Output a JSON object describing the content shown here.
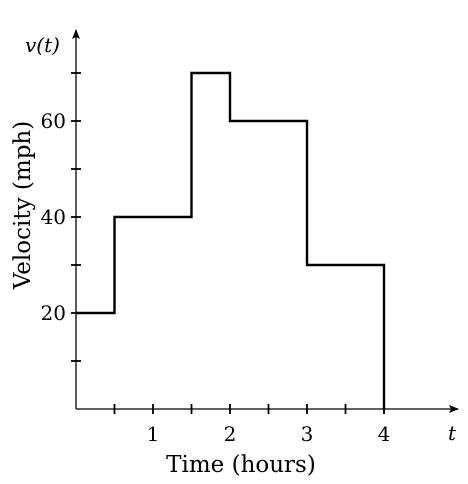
{
  "chart_data": {
    "type": "line",
    "step": true,
    "title": "",
    "xlabel": "Time (hours)",
    "ylabel": "Velocity (mph)",
    "x_var_label": "t",
    "y_var_label": "v(t)",
    "xlim": [
      0,
      5
    ],
    "ylim": [
      0,
      70
    ],
    "x_ticks": [
      0.5,
      1,
      1.5,
      2,
      2.5,
      3,
      3.5,
      4
    ],
    "x_tick_labels": [
      {
        "value": 1,
        "text": "1"
      },
      {
        "value": 2,
        "text": "2"
      },
      {
        "value": 3,
        "text": "3"
      },
      {
        "value": 4,
        "text": "4"
      }
    ],
    "y_ticks": [
      10,
      20,
      30,
      40,
      50,
      60,
      70
    ],
    "y_tick_labels": [
      {
        "value": 20,
        "text": "20"
      },
      {
        "value": 40,
        "text": "40"
      },
      {
        "value": 60,
        "text": "60"
      }
    ],
    "series": [
      {
        "segments": [
          {
            "x_start": 0,
            "x_end": 0.5,
            "y": 20
          },
          {
            "x_start": 0.5,
            "x_end": 1.5,
            "y": 40
          },
          {
            "x_start": 1.5,
            "x_end": 2,
            "y": 70
          },
          {
            "x_start": 2,
            "x_end": 3,
            "y": 60
          },
          {
            "x_start": 3,
            "x_end": 4,
            "y": 30
          }
        ],
        "end_drop": {
          "x": 4,
          "y": 0
        }
      }
    ],
    "grid": false,
    "color": "#000000"
  }
}
